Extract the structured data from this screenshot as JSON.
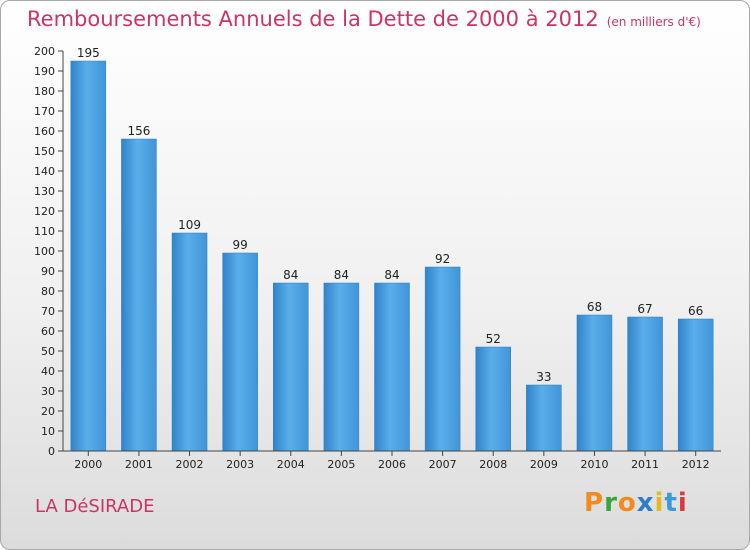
{
  "title": "Remboursements Annuels de la Dette de 2000 à 2012",
  "unit": "(en milliers d'€)",
  "commune": "LA DéSIRADE",
  "logo": {
    "letters": [
      "P",
      "r",
      "o",
      "x",
      "i",
      "t",
      "i"
    ],
    "colors": [
      "#f28a1e",
      "#37a537",
      "#f28a1e",
      "#2c7fc6",
      "#e6b91e",
      "#3a9ad9",
      "#d93a3a"
    ]
  },
  "colors": {
    "bar": "#4a9fe0",
    "bar_dark": "#2f7fc4",
    "accent": "#cc3366"
  },
  "chart_data": {
    "type": "bar",
    "categories": [
      "2000",
      "2001",
      "2002",
      "2003",
      "2004",
      "2005",
      "2006",
      "2007",
      "2008",
      "2009",
      "2010",
      "2011",
      "2012"
    ],
    "values": [
      195,
      156,
      109,
      99,
      84,
      84,
      84,
      92,
      52,
      33,
      68,
      67,
      66
    ],
    "ylim": [
      0,
      200
    ],
    "ytick_step": 10,
    "title": "Remboursements Annuels de la Dette de 2000 à 2012",
    "xlabel": "",
    "ylabel": "",
    "grid": false
  }
}
